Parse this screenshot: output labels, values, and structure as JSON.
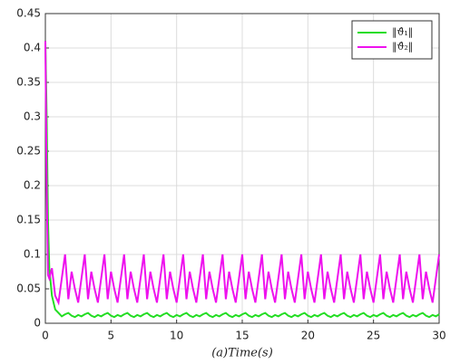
{
  "chart_data": {
    "type": "line",
    "xlabel": "(a)Time(s)",
    "x": [
      0,
      0.1,
      0.2,
      0.3,
      0.5,
      0.75,
      1,
      1.25,
      1.5,
      1.75,
      2,
      2.25,
      2.5,
      2.75,
      3,
      3.25,
      3.5,
      3.75,
      4,
      4.25,
      4.5,
      4.75,
      5,
      5.25,
      5.5,
      5.75,
      6,
      6.25,
      6.5,
      6.75,
      7,
      7.25,
      7.5,
      7.75,
      8,
      8.25,
      8.5,
      8.75,
      9,
      9.25,
      9.5,
      9.75,
      10,
      10.25,
      10.5,
      10.75,
      11,
      11.25,
      11.5,
      11.75,
      12,
      12.25,
      12.5,
      12.75,
      13,
      13.25,
      13.5,
      13.75,
      14,
      14.25,
      14.5,
      14.75,
      15,
      15.25,
      15.5,
      15.75,
      16,
      16.25,
      16.5,
      16.75,
      17,
      17.25,
      17.5,
      17.75,
      18,
      18.25,
      18.5,
      18.75,
      19,
      19.25,
      19.5,
      19.75,
      20,
      20.25,
      20.5,
      20.75,
      21,
      21.25,
      21.5,
      21.75,
      22,
      22.25,
      22.5,
      22.75,
      23,
      23.25,
      23.5,
      23.75,
      24,
      24.25,
      24.5,
      24.75,
      25,
      25.25,
      25.5,
      25.75,
      26,
      26.25,
      26.5,
      26.75,
      27,
      27.25,
      27.5,
      27.75,
      28,
      28.25,
      28.5,
      28.75,
      29,
      29.25,
      29.5,
      29.75,
      30
    ],
    "series": [
      {
        "name": "‖ϑ̂₁‖",
        "color": "#22dd22",
        "values": [
          0.41,
          0.3,
          0.15,
          0.08,
          0.04,
          0.02,
          0.015,
          0.01,
          0.013,
          0.015,
          0.011,
          0.009,
          0.012,
          0.01,
          0.013,
          0.015,
          0.011,
          0.009,
          0.012,
          0.01,
          0.013,
          0.015,
          0.011,
          0.009,
          0.012,
          0.01,
          0.013,
          0.015,
          0.011,
          0.009,
          0.012,
          0.01,
          0.013,
          0.015,
          0.011,
          0.009,
          0.012,
          0.01,
          0.013,
          0.015,
          0.011,
          0.009,
          0.012,
          0.01,
          0.013,
          0.015,
          0.011,
          0.009,
          0.012,
          0.01,
          0.013,
          0.015,
          0.011,
          0.009,
          0.012,
          0.01,
          0.013,
          0.015,
          0.011,
          0.009,
          0.012,
          0.01,
          0.013,
          0.015,
          0.011,
          0.009,
          0.012,
          0.01,
          0.013,
          0.015,
          0.011,
          0.009,
          0.012,
          0.01,
          0.013,
          0.015,
          0.011,
          0.009,
          0.012,
          0.01,
          0.013,
          0.015,
          0.011,
          0.009,
          0.012,
          0.01,
          0.013,
          0.015,
          0.011,
          0.009,
          0.012,
          0.01,
          0.013,
          0.015,
          0.011,
          0.009,
          0.012,
          0.01,
          0.013,
          0.015,
          0.011,
          0.009,
          0.012,
          0.01,
          0.013,
          0.015,
          0.011,
          0.009,
          0.012,
          0.01,
          0.013,
          0.015,
          0.011,
          0.009,
          0.012,
          0.01,
          0.013,
          0.015,
          0.011,
          0.009,
          0.012,
          0.01,
          0.013
        ]
      },
      {
        "name": "‖ϑ̂₂‖",
        "color": "#ee11ee",
        "values": [
          0.41,
          0.2,
          0.07,
          0.065,
          0.08,
          0.04,
          0.03,
          0.065,
          0.1,
          0.035,
          0.075,
          0.05,
          0.03,
          0.065,
          0.1,
          0.035,
          0.075,
          0.05,
          0.03,
          0.065,
          0.1,
          0.035,
          0.075,
          0.05,
          0.03,
          0.065,
          0.1,
          0.035,
          0.075,
          0.05,
          0.03,
          0.065,
          0.1,
          0.035,
          0.075,
          0.05,
          0.03,
          0.065,
          0.1,
          0.035,
          0.075,
          0.05,
          0.03,
          0.065,
          0.1,
          0.035,
          0.075,
          0.05,
          0.03,
          0.065,
          0.1,
          0.035,
          0.075,
          0.05,
          0.03,
          0.065,
          0.1,
          0.035,
          0.075,
          0.05,
          0.03,
          0.065,
          0.1,
          0.035,
          0.075,
          0.05,
          0.03,
          0.065,
          0.1,
          0.035,
          0.075,
          0.05,
          0.03,
          0.065,
          0.1,
          0.035,
          0.075,
          0.05,
          0.03,
          0.065,
          0.1,
          0.035,
          0.075,
          0.05,
          0.03,
          0.065,
          0.1,
          0.035,
          0.075,
          0.05,
          0.03,
          0.065,
          0.1,
          0.035,
          0.075,
          0.05,
          0.03,
          0.065,
          0.1,
          0.035,
          0.075,
          0.05,
          0.03,
          0.065,
          0.1,
          0.035,
          0.075,
          0.05,
          0.03,
          0.065,
          0.1,
          0.035,
          0.075,
          0.05,
          0.03,
          0.065,
          0.1,
          0.035,
          0.075,
          0.05,
          0.03,
          0.065,
          0.1
        ]
      }
    ],
    "xlim": [
      0,
      30
    ],
    "xticks": [
      0,
      5,
      10,
      15,
      20,
      25,
      30
    ],
    "ylim": [
      0,
      0.45
    ],
    "yticks": [
      0,
      0.05,
      0.1,
      0.15,
      0.2,
      0.25,
      0.3,
      0.35,
      0.4,
      0.45
    ],
    "grid": true,
    "legend": "upper right"
  }
}
